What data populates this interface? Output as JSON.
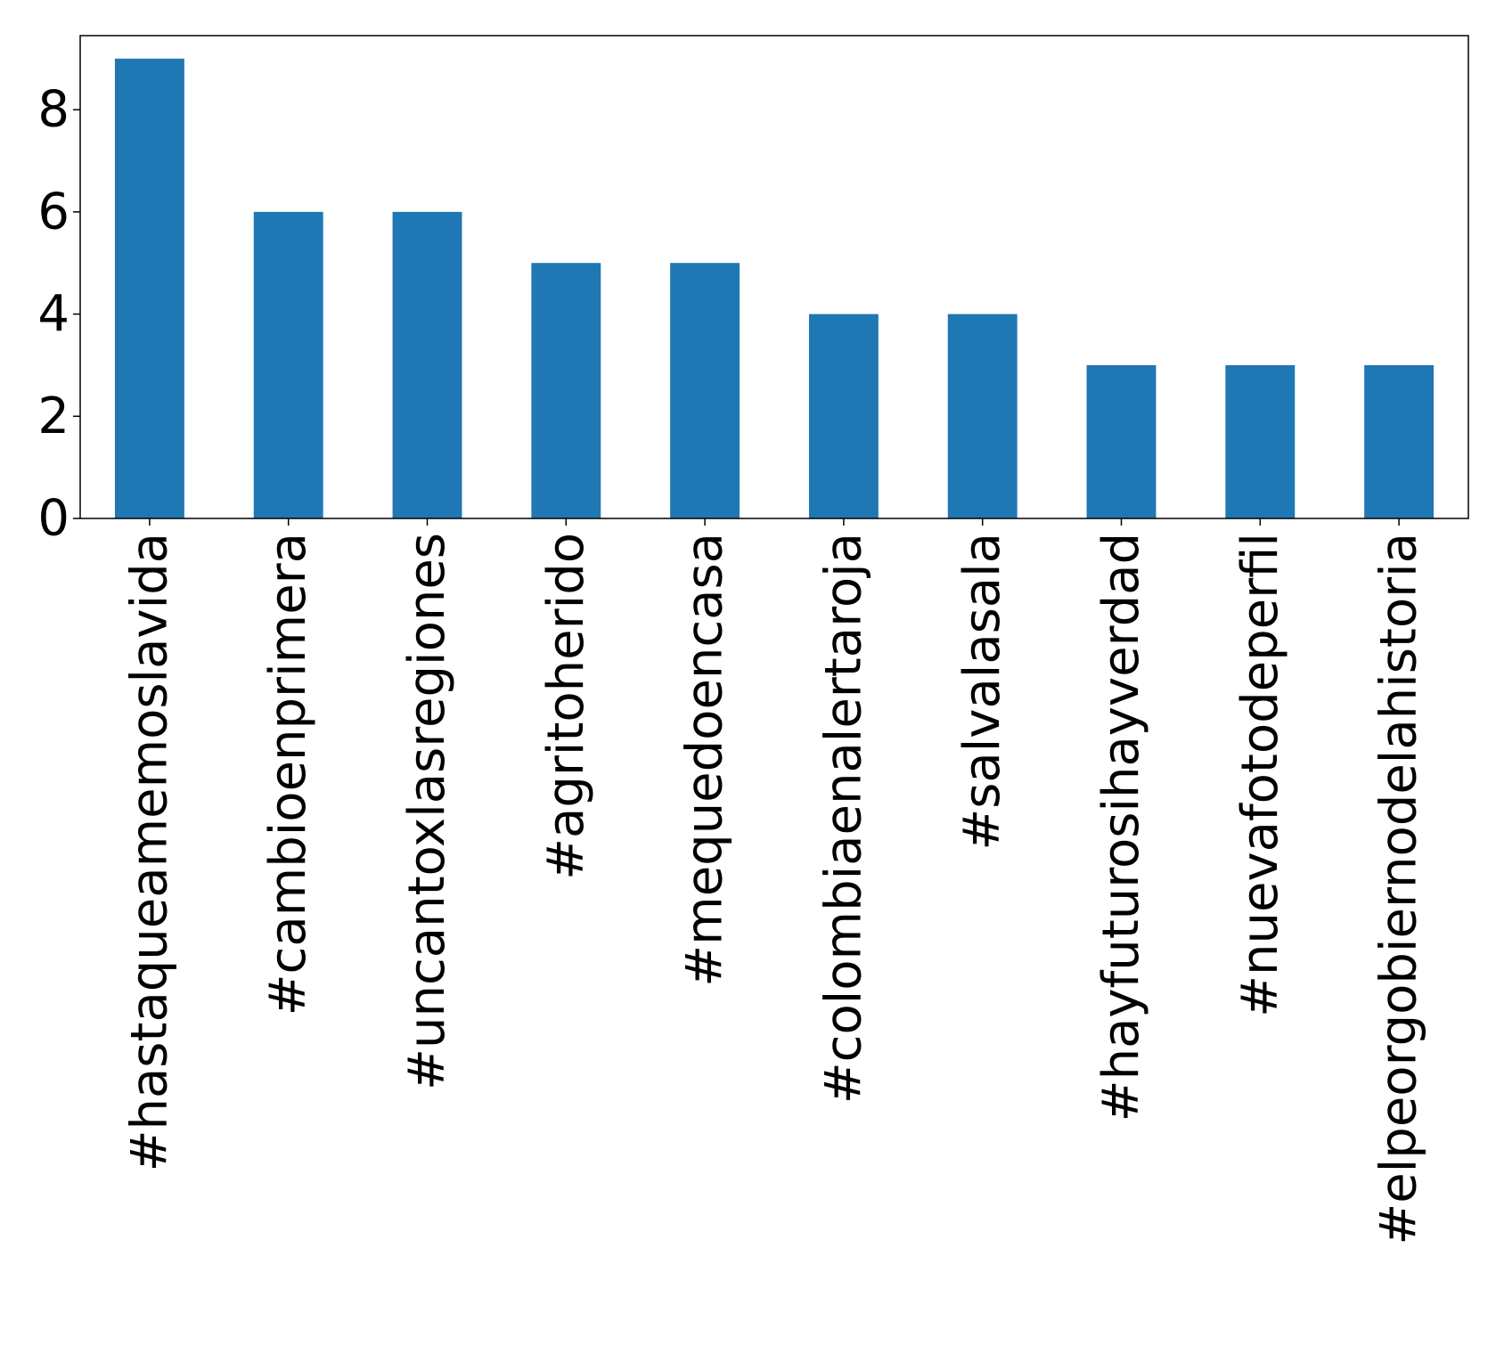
{
  "chart_data": {
    "type": "bar",
    "categories": [
      "#hastaqueamemoslavida",
      "#cambioenprimera",
      "#uncantoxlasregiones",
      "#agritoherido",
      "#mequedoencasa",
      "#colombiaenalertaroja",
      "#salvalasala",
      "#hayfuturosihayverdad",
      "#nuevafotodeperfil",
      "#elpeorgobiernodelahistoria"
    ],
    "values": [
      9,
      6,
      6,
      5,
      5,
      4,
      4,
      3,
      3,
      3
    ],
    "title": "",
    "xlabel": "",
    "ylabel": "",
    "ylim": [
      0,
      9.45
    ],
    "yticks": [
      0,
      2,
      4,
      6,
      8
    ],
    "grid": false,
    "bar_color": "#1f77b4"
  }
}
